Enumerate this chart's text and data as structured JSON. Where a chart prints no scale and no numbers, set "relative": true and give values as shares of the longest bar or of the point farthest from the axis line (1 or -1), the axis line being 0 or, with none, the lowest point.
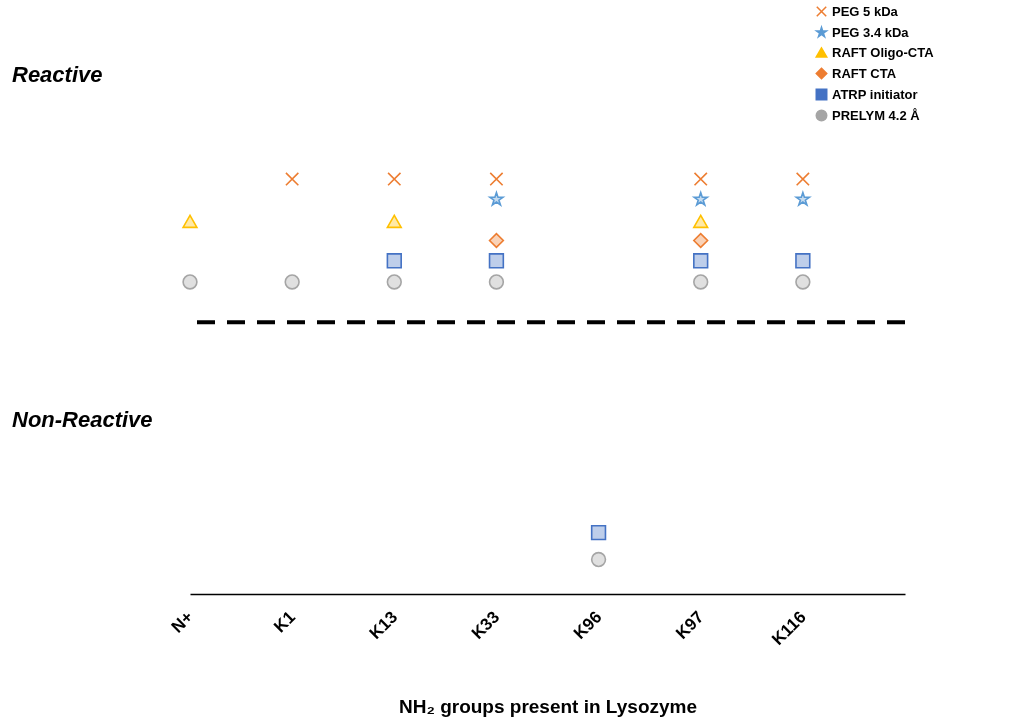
{
  "chart_data": {
    "type": "scatter",
    "relative": true,
    "xlabel": "NH₂ groups present in Lysozyme",
    "categories": [
      "N+",
      "K1",
      "K13",
      "K33",
      "K96",
      "K97",
      "K116",
      null
    ],
    "series": [
      {
        "name": "PEG 5 kDa",
        "color": "#ed7d31",
        "marker": "cross",
        "values": [
          null,
          1,
          1,
          1,
          null,
          1,
          1,
          null
        ]
      },
      {
        "name": "PEG 3.4 kDa",
        "color": "#5b9bd5",
        "marker": "star",
        "values": [
          null,
          null,
          null,
          0.951,
          null,
          0.951,
          0.951,
          null
        ]
      },
      {
        "name": "RAFT Oligo-CTA",
        "color": "#ffc000",
        "marker": "triangle",
        "values": [
          0.898,
          null,
          0.898,
          null,
          null,
          0.898,
          null,
          null
        ]
      },
      {
        "name": "RAFT CTA",
        "color": "#ed7d31",
        "marker": "diamond",
        "values": [
          null,
          null,
          null,
          0.852,
          null,
          0.852,
          null,
          null
        ]
      },
      {
        "name": "ATRP initiator",
        "color": "#4472c4",
        "marker": "square",
        "values": [
          null,
          null,
          0.803,
          0.803,
          0.148,
          0.803,
          0.803,
          null
        ]
      },
      {
        "name": "PRELYM 4.2 Å",
        "color": "#a5a5a5",
        "marker": "circle",
        "values": [
          0.752,
          0.752,
          0.752,
          0.752,
          0.083,
          0.752,
          0.752,
          null
        ]
      }
    ],
    "ref_lines": [
      {
        "axis": "y",
        "value": 0.655,
        "color": "#000000",
        "line_style": "dashed"
      }
    ],
    "annotations": [
      "Reactive",
      "Non-Reactive"
    ],
    "legend": "top right"
  }
}
